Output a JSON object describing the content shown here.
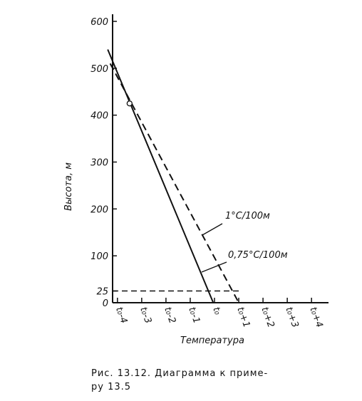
{
  "chart_data": {
    "type": "line",
    "ylabel": "Высота, м",
    "xlabel": "Температура",
    "caption": [
      "Рис. 13.12. Диаграмма к приме-",
      "ру 13.5"
    ],
    "xlim": [
      -4.2,
      4.7
    ],
    "ylim": [
      0,
      600
    ],
    "xticks": [
      {
        "value": -4,
        "label": "t₀-4"
      },
      {
        "value": -3,
        "label": "t₀-3"
      },
      {
        "value": -2,
        "label": "t₀-2"
      },
      {
        "value": -1,
        "label": "t₀-1"
      },
      {
        "value": 0,
        "label": "t₀"
      },
      {
        "value": 1,
        "label": "t₀+1"
      },
      {
        "value": 2,
        "label": "t₀+2"
      },
      {
        "value": 3,
        "label": "t₀+3"
      },
      {
        "value": 4,
        "label": "t₀+4"
      }
    ],
    "yticks": [
      0,
      25,
      100,
      200,
      300,
      400,
      500,
      600
    ],
    "series": [
      {
        "name": "0,75°C/100м",
        "color": "#111111",
        "style": "solid",
        "x": [
          -4.4,
          -0.05
        ],
        "values": [
          540,
          0
        ]
      },
      {
        "name": "1°C/100м",
        "color": "#111111",
        "style": "dashed",
        "x": [
          -4.3,
          1
        ],
        "values": [
          510,
          0
        ]
      }
    ],
    "reference_line": {
      "y": 25,
      "x_end": 1,
      "style": "dashed"
    },
    "marker": {
      "x": -3.5,
      "y": 425
    }
  }
}
